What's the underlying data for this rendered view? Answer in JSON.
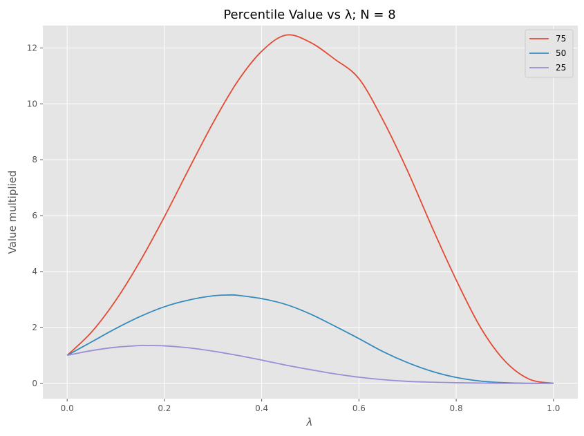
{
  "chart_data": {
    "type": "line",
    "title": "Percentile Value vs λ; N = 8",
    "xlabel": "λ",
    "ylabel": "Value multiplied",
    "xlim": [
      -0.05,
      1.05
    ],
    "ylim": [
      -0.55,
      12.8
    ],
    "xticks": [
      0.0,
      0.2,
      0.4,
      0.6,
      0.8,
      1.0
    ],
    "xtick_labels": [
      "0.0",
      "0.2",
      "0.4",
      "0.6",
      "0.8",
      "1.0"
    ],
    "yticks": [
      0,
      2,
      4,
      6,
      8,
      10,
      12
    ],
    "ytick_labels": [
      "0",
      "2",
      "4",
      "6",
      "8",
      "10",
      "12"
    ],
    "grid": true,
    "legend_position": "top-right",
    "series": [
      {
        "name": "75",
        "color": "#E24A33",
        "x": [
          0.0,
          0.05,
          0.1,
          0.15,
          0.2,
          0.25,
          0.3,
          0.35,
          0.4,
          0.45,
          0.5,
          0.55,
          0.6,
          0.65,
          0.7,
          0.75,
          0.8,
          0.85,
          0.9,
          0.95,
          1.0
        ],
        "y": [
          1.0,
          1.83,
          2.97,
          4.37,
          5.96,
          7.66,
          9.32,
          10.79,
          11.88,
          12.46,
          12.2,
          11.6,
          10.9,
          9.4,
          7.6,
          5.6,
          3.7,
          2.0,
          0.8,
          0.15,
          0.0
        ]
      },
      {
        "name": "50",
        "color": "#348ABD",
        "x": [
          0.0,
          0.05,
          0.1,
          0.15,
          0.2,
          0.25,
          0.3,
          0.333,
          0.35,
          0.4,
          0.45,
          0.5,
          0.55,
          0.6,
          0.65,
          0.7,
          0.75,
          0.8,
          0.85,
          0.9,
          0.95,
          1.0
        ],
        "y": [
          1.0,
          1.48,
          1.96,
          2.39,
          2.74,
          2.98,
          3.13,
          3.16,
          3.15,
          3.03,
          2.82,
          2.48,
          2.05,
          1.6,
          1.13,
          0.74,
          0.43,
          0.21,
          0.08,
          0.02,
          0.0,
          0.0
        ]
      },
      {
        "name": "25",
        "color": "#988ED5",
        "x": [
          0.0,
          0.05,
          0.1,
          0.15,
          0.167,
          0.2,
          0.25,
          0.3,
          0.35,
          0.4,
          0.45,
          0.5,
          0.55,
          0.6,
          0.65,
          0.7,
          0.75,
          0.8,
          0.85,
          0.9,
          0.95,
          1.0
        ],
        "y": [
          1.0,
          1.17,
          1.29,
          1.35,
          1.35,
          1.34,
          1.27,
          1.15,
          1.0,
          0.83,
          0.65,
          0.49,
          0.34,
          0.22,
          0.13,
          0.07,
          0.04,
          0.02,
          0.01,
          0.0,
          0.0,
          0.0
        ]
      }
    ]
  }
}
